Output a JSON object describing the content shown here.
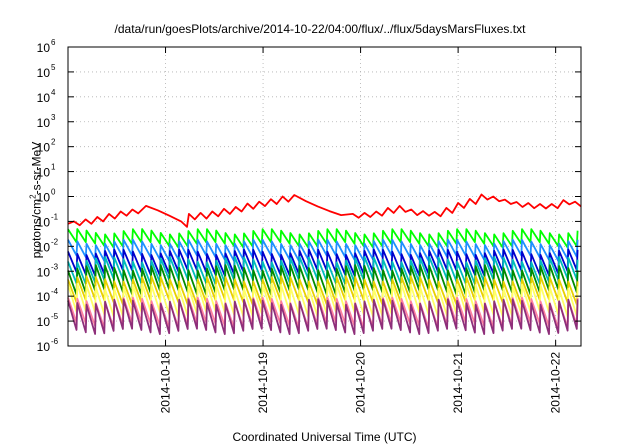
{
  "chart_data": {
    "type": "line",
    "title": "/data/run/goesPlots/archive/2014-10-22/04:00/flux/../flux/5daysMarsFluxes.txt",
    "xlabel": "Coordinated Universal Time (UTC)",
    "ylabel": {
      "pre": "protons/cm",
      "sup": "2",
      "post": "-s-sr-MeV"
    },
    "x_start": "2014-10-17",
    "x_ticks": [
      "2014-10-18",
      "2014-10-19",
      "2014-10-20",
      "2014-10-21",
      "2014-10-22"
    ],
    "ylim": [
      1e-06,
      1000000.0
    ],
    "y_scale": "log",
    "y_ticks": [
      {
        "base": "10",
        "exp": "-6"
      },
      {
        "base": "10",
        "exp": "-5"
      },
      {
        "base": "10",
        "exp": "-4"
      },
      {
        "base": "10",
        "exp": "-3"
      },
      {
        "base": "10",
        "exp": "-2"
      },
      {
        "base": "10",
        "exp": "-1"
      },
      {
        "base": "10",
        "exp": "0"
      },
      {
        "base": "10",
        "exp": "1"
      },
      {
        "base": "10",
        "exp": "2"
      },
      {
        "base": "10",
        "exp": "3"
      },
      {
        "base": "10",
        "exp": "4"
      },
      {
        "base": "10",
        "exp": "5"
      },
      {
        "base": "10",
        "exp": "6"
      }
    ],
    "grid": true,
    "x_range_days": [
      0,
      5.26
    ],
    "series": [
      {
        "color": "#ff0000",
        "sawtooth": false,
        "values": [
          [
            0,
            0.08
          ],
          [
            0.06,
            0.1
          ],
          [
            0.12,
            0.07
          ],
          [
            0.18,
            0.12
          ],
          [
            0.24,
            0.08
          ],
          [
            0.3,
            0.15
          ],
          [
            0.36,
            0.1
          ],
          [
            0.42,
            0.2
          ],
          [
            0.48,
            0.13
          ],
          [
            0.54,
            0.25
          ],
          [
            0.6,
            0.17
          ],
          [
            0.66,
            0.3
          ],
          [
            0.72,
            0.21
          ],
          [
            0.8,
            0.42
          ],
          [
            0.92,
            0.28
          ],
          [
            1.04,
            0.17
          ],
          [
            1.16,
            0.1
          ],
          [
            1.22,
            0.06
          ],
          [
            1.24,
            0.2
          ],
          [
            1.3,
            0.12
          ],
          [
            1.36,
            0.22
          ],
          [
            1.42,
            0.13
          ],
          [
            1.48,
            0.25
          ],
          [
            1.54,
            0.16
          ],
          [
            1.6,
            0.32
          ],
          [
            1.66,
            0.2
          ],
          [
            1.72,
            0.38
          ],
          [
            1.78,
            0.25
          ],
          [
            1.84,
            0.52
          ],
          [
            1.9,
            0.32
          ],
          [
            1.96,
            0.62
          ],
          [
            2.02,
            0.41
          ],
          [
            2.08,
            0.78
          ],
          [
            2.14,
            0.5
          ],
          [
            2.2,
            1.0
          ],
          [
            2.26,
            0.62
          ],
          [
            2.32,
            1.15
          ],
          [
            2.44,
            0.65
          ],
          [
            2.56,
            0.4
          ],
          [
            2.68,
            0.26
          ],
          [
            2.8,
            0.18
          ],
          [
            2.92,
            0.2
          ],
          [
            2.98,
            0.14
          ],
          [
            3.04,
            0.22
          ],
          [
            3.1,
            0.15
          ],
          [
            3.16,
            0.25
          ],
          [
            3.22,
            0.17
          ],
          [
            3.28,
            0.35
          ],
          [
            3.34,
            0.22
          ],
          [
            3.4,
            0.42
          ],
          [
            3.46,
            0.24
          ],
          [
            3.52,
            0.3
          ],
          [
            3.58,
            0.18
          ],
          [
            3.64,
            0.26
          ],
          [
            3.7,
            0.17
          ],
          [
            3.76,
            0.24
          ],
          [
            3.82,
            0.16
          ],
          [
            3.88,
            0.35
          ],
          [
            3.94,
            0.22
          ],
          [
            4.0,
            0.55
          ],
          [
            4.06,
            0.35
          ],
          [
            4.12,
            0.8
          ],
          [
            4.18,
            0.5
          ],
          [
            4.24,
            1.2
          ],
          [
            4.3,
            0.75
          ],
          [
            4.36,
            1.0
          ],
          [
            4.42,
            0.65
          ],
          [
            4.48,
            0.75
          ],
          [
            4.54,
            0.5
          ],
          [
            4.6,
            0.6
          ],
          [
            4.66,
            0.38
          ],
          [
            4.72,
            0.55
          ],
          [
            4.78,
            0.34
          ],
          [
            4.84,
            0.5
          ],
          [
            4.9,
            0.33
          ],
          [
            4.96,
            0.5
          ],
          [
            5.02,
            0.34
          ],
          [
            5.08,
            0.72
          ],
          [
            5.14,
            0.48
          ],
          [
            5.2,
            0.62
          ],
          [
            5.26,
            0.4
          ]
        ]
      },
      {
        "color": "#00ff00",
        "sawtooth": true,
        "period": 0.095,
        "peak": 0.04,
        "trough": 0.012
      },
      {
        "color": "#1e8fff",
        "sawtooth": true,
        "period": 0.095,
        "peak": 0.015,
        "trough": 0.0035
      },
      {
        "color": "#0000cc",
        "sawtooth": true,
        "period": 0.095,
        "peak": 0.006,
        "trough": 0.0009
      },
      {
        "color": "#00bcbc",
        "sawtooth": true,
        "period": 0.095,
        "peak": 0.003,
        "trough": 0.0004
      },
      {
        "color": "#008b00",
        "sawtooth": true,
        "period": 0.095,
        "peak": 0.0014,
        "trough": 0.00015
      },
      {
        "color": "#e8d000",
        "sawtooth": true,
        "period": 0.095,
        "peak": 0.0005,
        "trough": 6e-05
      },
      {
        "color": "#ffff66",
        "sawtooth": true,
        "period": 0.095,
        "peak": 0.00025,
        "trough": 2e-05
      },
      {
        "color": "#ff7fa0",
        "sawtooth": true,
        "period": 0.095,
        "peak": 7e-05,
        "trough": 7e-06
      },
      {
        "color": "#8e2f7a",
        "sawtooth": true,
        "period": 0.095,
        "peak": 6e-05,
        "trough": 4e-06
      }
    ]
  }
}
